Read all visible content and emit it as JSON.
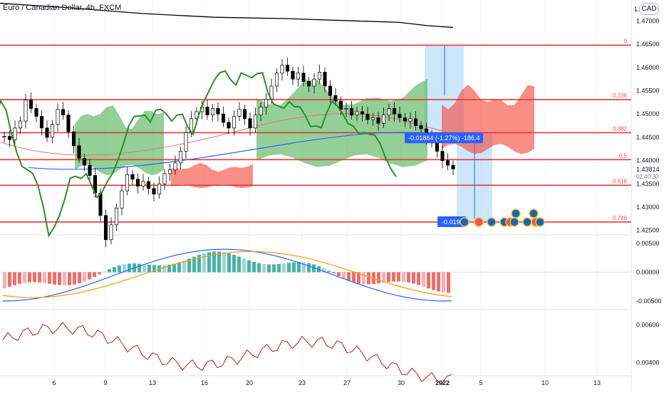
{
  "header": {
    "title": "Euro / Canadian Dollar, 4h, FXCM",
    "currency": "CAD"
  },
  "colors": {
    "bull": "#26a69a",
    "bear": "#ef5350",
    "fib_line": "#e53935",
    "fib_label": "#ef5350",
    "cloud_bull": "#4caf50",
    "cloud_bear": "#f44336",
    "chikou": "#2e8b2e",
    "sma_black": "#000000",
    "ma_blue": "#2962ff",
    "macd": "#2962ff",
    "signal": "#ff9800",
    "price_tag": "#2962ff",
    "rsi_line": "#b71c1c",
    "projection": "#bbdefb"
  },
  "x_axis": {
    "labels": [
      "6",
      "9",
      "13",
      "16",
      "20",
      "23",
      "27",
      "30",
      "2022",
      "5",
      "10",
      "13"
    ]
  },
  "price_axis": {
    "labels": [
      "1.47000",
      "1.46500",
      "1.46000",
      "1.45500",
      "1.45000",
      "1.44500",
      "1.44000",
      "1.43500",
      "1.43000",
      "1.42500"
    ],
    "top_label": "1.",
    "current_price": "1.43814",
    "countdown": "02:40:30"
  },
  "fib_levels": [
    {
      "label": "0",
      "price": 1.4648
    },
    {
      "label": "0.236",
      "price": 1.4531
    },
    {
      "label": "0.382",
      "price": 1.446
    },
    {
      "label": "0.5",
      "price": 1.4402
    },
    {
      "label": "0.618",
      "price": 1.4347
    },
    {
      "label": "0.786",
      "price": 1.4268
    }
  ],
  "measure_tags": {
    "upper": "-0.01864 (-1.27%) -186.4",
    "lower": "-0.019"
  },
  "macd_panel": {
    "labels": [
      "0.00500",
      "0.00000",
      "-0.00500"
    ]
  },
  "lower_panel": {
    "labels": [
      "0.00600",
      "0.00400"
    ]
  },
  "chart_data": {
    "type": "candlestick",
    "title": "Euro / Canadian Dollar, 4h, FXCM",
    "y_unit": "CAD",
    "ylim": [
      1.4245,
      1.4745
    ],
    "x_ticks": [
      "6",
      "9",
      "13",
      "16",
      "20",
      "23",
      "27",
      "30",
      "2022",
      "5",
      "10",
      "13"
    ],
    "price_path": [
      1.4452,
      1.4445,
      1.447,
      1.4485,
      1.453,
      1.4512,
      1.4495,
      1.447,
      1.445,
      1.4478,
      1.451,
      1.4498,
      1.4462,
      1.4432,
      1.4405,
      1.439,
      1.4368,
      1.433,
      1.4282,
      1.423,
      1.4262,
      1.4298,
      1.4335,
      1.437,
      1.436,
      1.4345,
      1.4355,
      1.434,
      1.4328,
      1.435,
      1.4372,
      1.438,
      1.4395,
      1.442,
      1.446,
      1.449,
      1.4505,
      1.4515,
      1.4498,
      1.4512,
      1.45,
      1.4482,
      1.447,
      1.4495,
      1.451,
      1.449,
      1.447,
      1.4498,
      1.4515,
      1.4532,
      1.456,
      1.4588,
      1.4605,
      1.4592,
      1.4575,
      1.4588,
      1.457,
      1.456,
      1.4575,
      1.459,
      1.456,
      1.454,
      1.4528,
      1.451,
      1.4512,
      1.4498,
      1.4505,
      1.45,
      1.4488,
      1.4492,
      1.448,
      1.4498,
      1.4512,
      1.45,
      1.4492,
      1.4485,
      1.449,
      1.4475,
      1.4468,
      1.445,
      1.4438,
      1.442,
      1.44,
      1.439,
      1.4382
    ],
    "sma_black": [
      [
        0,
        1.4738
      ],
      [
        100,
        1.4728
      ],
      [
        200,
        1.4716
      ],
      [
        300,
        1.4708
      ],
      [
        400,
        1.4705
      ],
      [
        500,
        1.47
      ],
      [
        560,
        1.4697
      ],
      [
        600,
        1.469
      ],
      [
        636,
        1.4686
      ]
    ],
    "ichimoku_cloud": [
      {
        "x0": 105,
        "x1": 230,
        "top": 1.4496,
        "bottom": 1.438,
        "trend": "bull"
      },
      {
        "x0": 240,
        "x1": 355,
        "top": 1.4385,
        "bottom": 1.4345,
        "trend": "bear"
      },
      {
        "x0": 360,
        "x1": 600,
        "top": 1.454,
        "bottom": 1.44,
        "trend": "bull"
      },
      {
        "x0": 620,
        "x1": 750,
        "top": 1.4535,
        "bottom": 1.4425,
        "trend": "bear"
      }
    ],
    "fib_retracement": [
      0,
      0.236,
      0.382,
      0.5,
      0.618,
      0.786
    ],
    "current_price": 1.43814,
    "macd": {
      "ylim": [
        -0.0065,
        0.0065
      ],
      "ticks": [
        0.005,
        0.0,
        -0.005
      ]
    },
    "lower": {
      "ylim": [
        0.0033,
        0.0068
      ],
      "ticks": [
        0.006,
        0.004
      ]
    }
  }
}
